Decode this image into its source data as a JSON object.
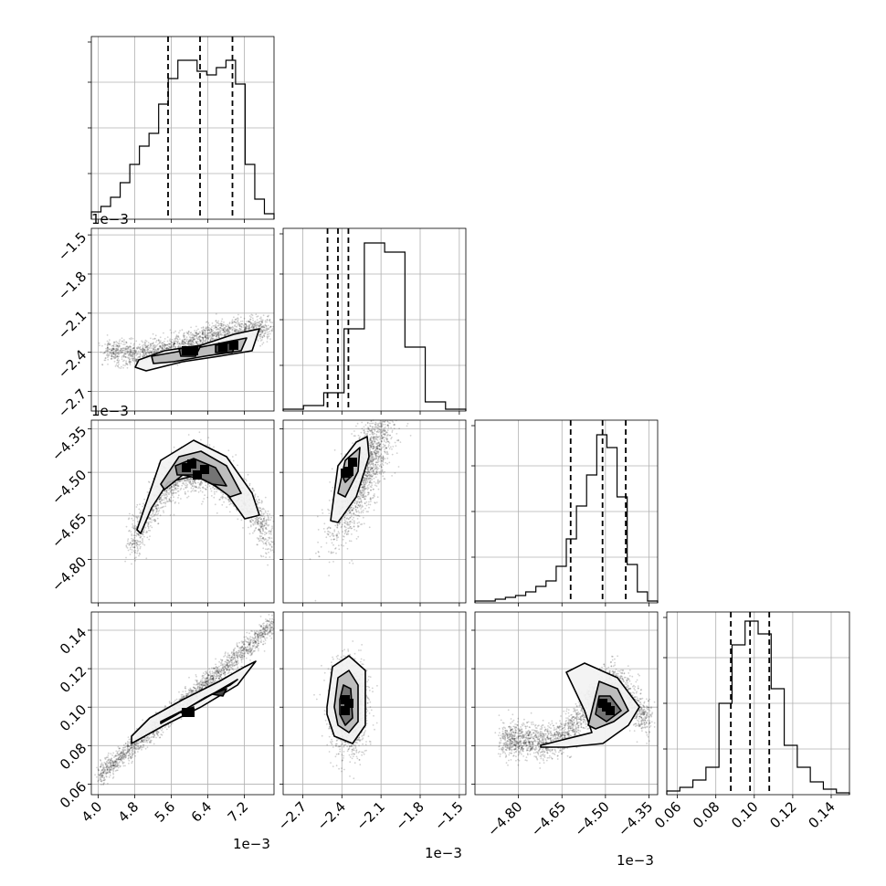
{
  "chart_data": [
    {
      "type": "histogram",
      "panel": "diag-0",
      "xlim": [
        0.00385,
        0.00785
      ],
      "bin_heights": [
        0.04,
        0.07,
        0.12,
        0.2,
        0.3,
        0.4,
        0.47,
        0.63,
        0.77,
        0.87,
        0.87,
        0.81,
        0.79,
        0.83,
        0.87,
        0.74,
        0.3,
        0.11,
        0.03
      ],
      "quantiles": [
        0.00553,
        0.00623,
        0.00694
      ]
    },
    {
      "type": "histogram",
      "panel": "diag-1",
      "xlim": [
        -0.00285,
        -0.00145
      ],
      "bin_heights": [
        0.01,
        0.03,
        0.1,
        0.45,
        0.92,
        0.87,
        0.35,
        0.05,
        0.01
      ],
      "quantiles": [
        -0.00251,
        -0.00243,
        -0.00235
      ]
    },
    {
      "type": "histogram",
      "panel": "diag-2",
      "xlim": [
        -0.00495,
        -0.00432
      ],
      "bin_heights": [
        0.01,
        0.01,
        0.02,
        0.03,
        0.04,
        0.06,
        0.09,
        0.12,
        0.2,
        0.35,
        0.53,
        0.7,
        0.92,
        0.85,
        0.58,
        0.21,
        0.06,
        0.01
      ],
      "quantiles": [
        -0.00462,
        -0.00451,
        -0.00443
      ]
    },
    {
      "type": "histogram",
      "panel": "diag-3",
      "xlim": [
        0.0545,
        0.1495
      ],
      "bin_heights": [
        0.02,
        0.04,
        0.08,
        0.15,
        0.5,
        0.82,
        0.95,
        0.88,
        0.58,
        0.27,
        0.15,
        0.07,
        0.03,
        0.01
      ],
      "quantiles": [
        0.0878,
        0.0978,
        0.1078
      ]
    },
    {
      "type": "scatter-contour",
      "panel": "x0-y1",
      "xlim": [
        0.00385,
        0.00785
      ],
      "ylim": [
        -0.00285,
        -0.00145
      ],
      "xlabel": "1e−3",
      "ylabel": "1e−3",
      "xticks": [
        0.004,
        0.0048,
        0.0056,
        0.0064,
        0.0072
      ],
      "xtick_labels": [
        "4.0",
        "4.8",
        "5.6",
        "6.4",
        "7.2"
      ],
      "yticks": [
        -0.0015,
        -0.0018,
        -0.0021,
        -0.0024,
        -0.0027
      ],
      "ytick_labels": [
        "−1.5",
        "−1.8",
        "−2.1",
        "−2.4",
        "−2.7"
      ]
    },
    {
      "type": "scatter-contour",
      "panel": "x0-y2",
      "xlim": [
        0.00385,
        0.00785
      ],
      "ylim": [
        -0.00495,
        -0.00432
      ],
      "ylabel": "1e−3",
      "yticks": [
        -0.00435,
        -0.0045,
        -0.00465,
        -0.0048
      ],
      "ytick_labels": [
        "−4.35",
        "−4.50",
        "−4.65",
        "−4.80"
      ]
    },
    {
      "type": "scatter-contour",
      "panel": "x0-y3",
      "xlim": [
        0.00385,
        0.00785
      ],
      "ylim": [
        0.0545,
        0.1495
      ],
      "yticks": [
        0.06,
        0.08,
        0.1,
        0.12,
        0.14
      ],
      "ytick_labels": [
        "0.06",
        "0.08",
        "0.10",
        "0.12",
        "0.14"
      ]
    },
    {
      "type": "scatter-contour",
      "panel": "x1-y2",
      "xlim": [
        -0.00285,
        -0.00145
      ],
      "ylim": [
        -0.00495,
        -0.00432
      ]
    },
    {
      "type": "scatter-contour",
      "panel": "x1-y3",
      "xlim": [
        -0.00285,
        -0.00145
      ],
      "ylim": [
        0.0545,
        0.1495
      ],
      "xlabel": "1e−3",
      "xticks": [
        -0.0027,
        -0.0024,
        -0.0021,
        -0.0018,
        -0.0015
      ],
      "xtick_labels": [
        "−2.7",
        "−2.4",
        "−2.1",
        "−1.8",
        "−1.5"
      ]
    },
    {
      "type": "scatter-contour",
      "panel": "x2-y3",
      "xlim": [
        -0.00495,
        -0.00432
      ],
      "ylim": [
        0.0545,
        0.1495
      ],
      "xlabel": "1e−3",
      "xticks": [
        -0.0048,
        -0.00465,
        -0.0045,
        -0.00435
      ],
      "xtick_labels": [
        "−4.80",
        "−4.65",
        "−4.50",
        "−4.35"
      ]
    },
    {
      "type": "histogram-axis",
      "panel": "diag-3-xaxis",
      "xticks": [
        0.06,
        0.08,
        0.1,
        0.12,
        0.14
      ],
      "xtick_labels": [
        "0.06",
        "0.08",
        "0.10",
        "0.12",
        "0.14"
      ]
    }
  ],
  "labels": {
    "row1_offset": "1e−3",
    "row2_offset": "1e−3",
    "col0_offset": "1e−3",
    "col1_offset": "1e−3",
    "col2_offset": "1e−3"
  },
  "colors": {
    "axes": "#000000",
    "grid": "#b0b0b0",
    "points": "#000000",
    "contour_line": "#000000"
  }
}
